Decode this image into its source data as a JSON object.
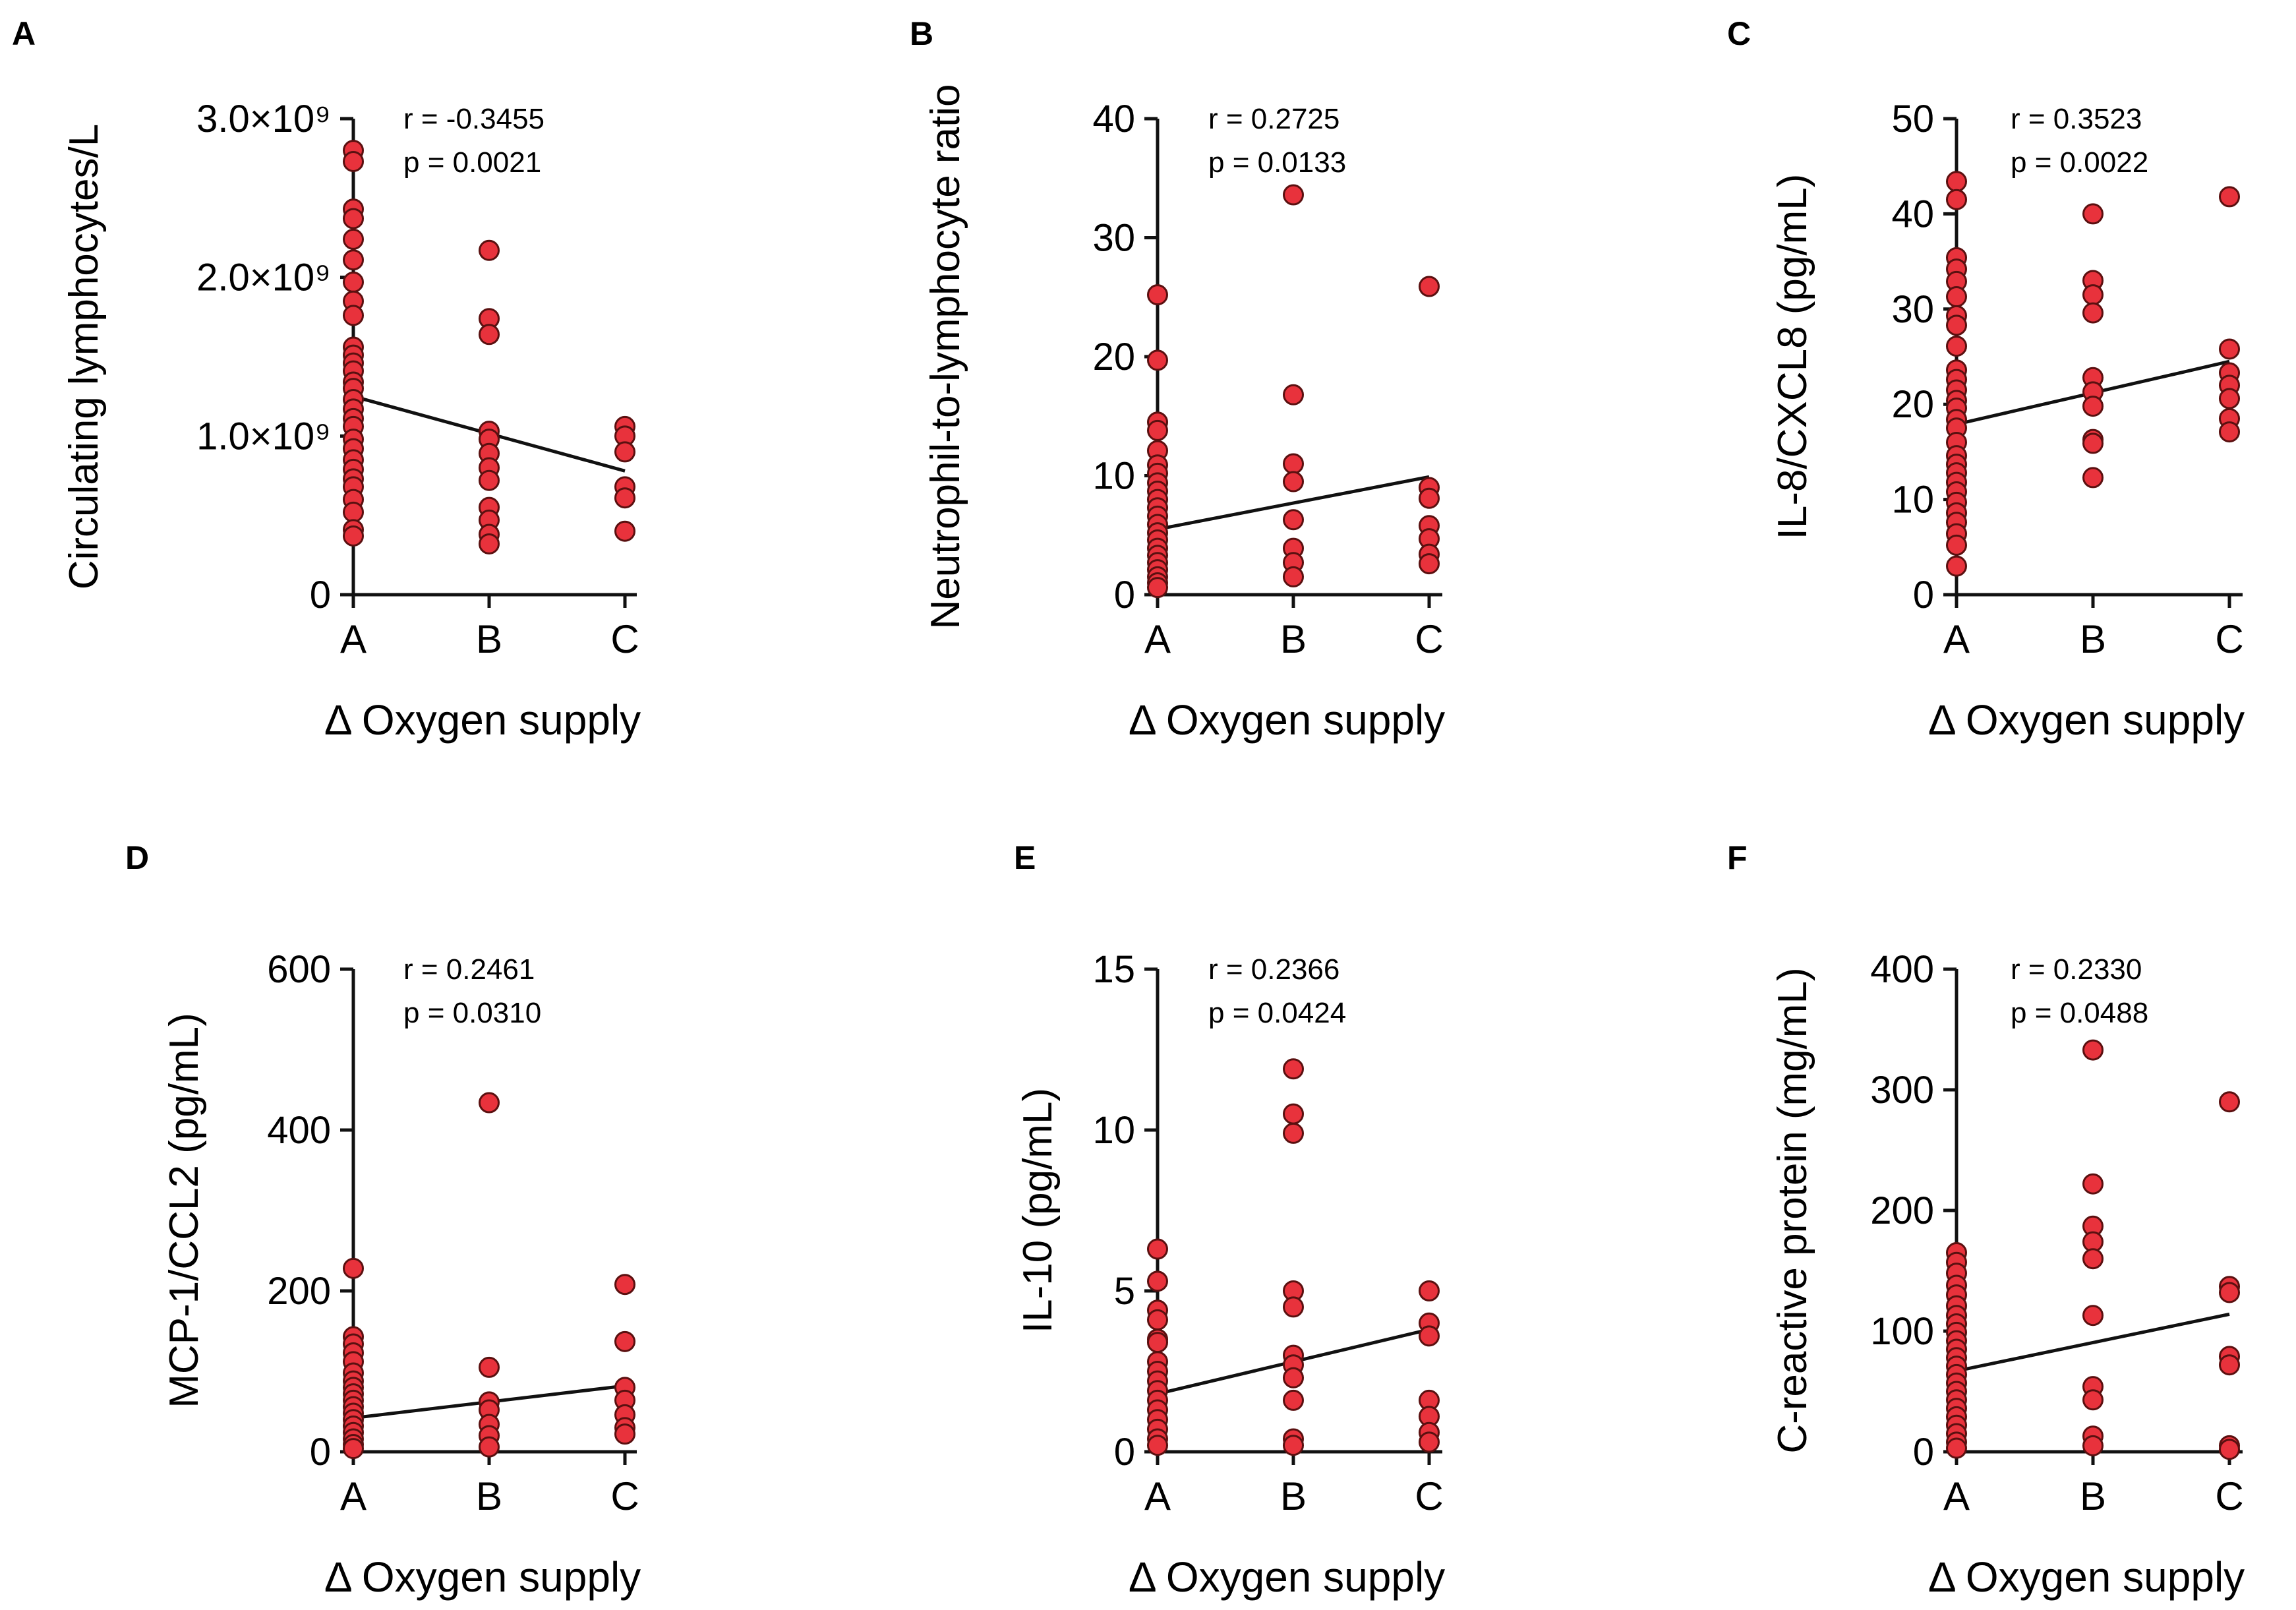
{
  "chart_data": [
    {
      "panel": "A",
      "type": "scatter",
      "ylabel": "Circulating lymphocytes/L",
      "xlabel": "Δ Oxygen supply",
      "categories": [
        "A",
        "B",
        "C"
      ],
      "ylim": [
        0,
        3000000000
      ],
      "yticks": [
        0,
        1000000000,
        2000000000,
        3000000000
      ],
      "ytick_labels": [
        "0",
        "1.0×10⁹",
        "2.0×10⁹",
        "3.0×10⁹"
      ],
      "stats": {
        "r": "r = -0.3455",
        "p": "p = 0.0021"
      },
      "trend": [
        1250000000,
        1020000000,
        780000000
      ],
      "points": {
        "A": [
          2800000000,
          2730000000,
          2430000000,
          2370000000,
          2240000000,
          2110000000,
          1970000000,
          1850000000,
          1760000000,
          1560000000,
          1510000000,
          1460000000,
          1410000000,
          1340000000,
          1300000000,
          1230000000,
          1170000000,
          1110000000,
          1060000000,
          980000000,
          920000000,
          850000000,
          790000000,
          730000000,
          680000000,
          600000000,
          520000000,
          410000000,
          370000000
        ],
        "B": [
          2170000000,
          1740000000,
          1640000000,
          1030000000,
          980000000,
          890000000,
          800000000,
          720000000,
          550000000,
          470000000,
          380000000,
          320000000
        ],
        "C": [
          1060000000,
          1000000000,
          900000000,
          680000000,
          610000000,
          400000000
        ]
      }
    },
    {
      "panel": "B",
      "type": "scatter",
      "ylabel": "Neutrophil-to-lymphocyte ratio",
      "xlabel": "Δ Oxygen supply",
      "categories": [
        "A",
        "B",
        "C"
      ],
      "ylim": [
        0,
        40
      ],
      "yticks": [
        0,
        10,
        20,
        30,
        40
      ],
      "ytick_labels": [
        "0",
        "10",
        "20",
        "30",
        "40"
      ],
      "stats": {
        "r": "r = 0.2725",
        "p": "p = 0.0133"
      },
      "trend": [
        5.5,
        7.7,
        9.9
      ],
      "points": {
        "A": [
          25.2,
          19.7,
          14.5,
          13.8,
          12.1,
          10.9,
          10.2,
          9.4,
          8.7,
          8.0,
          7.3,
          6.6,
          5.9,
          5.2,
          4.6,
          3.9,
          3.3,
          2.7,
          2.1,
          1.5,
          1.0,
          0.6
        ],
        "B": [
          33.6,
          16.8,
          11.0,
          9.5,
          6.3,
          3.9,
          2.7,
          1.5
        ],
        "C": [
          25.9,
          9.0,
          8.1,
          5.8,
          4.7,
          3.4,
          2.6
        ]
      }
    },
    {
      "panel": "C",
      "type": "scatter",
      "ylabel": "IL-8/CXCL8 (pg/mL)",
      "xlabel": "Δ Oxygen supply",
      "categories": [
        "A",
        "B",
        "C"
      ],
      "ylim": [
        0,
        50
      ],
      "yticks": [
        0,
        10,
        20,
        30,
        40,
        50
      ],
      "ytick_labels": [
        "0",
        "10",
        "20",
        "30",
        "40",
        "50"
      ],
      "stats": {
        "r": "r = 0.3523",
        "p": "p = 0.0022"
      },
      "trend": [
        17.9,
        21.2,
        24.5
      ],
      "points": {
        "A": [
          43.4,
          41.5,
          35.4,
          34.2,
          32.9,
          31.3,
          29.3,
          28.3,
          26.1,
          23.6,
          22.6,
          21.5,
          20.4,
          19.6,
          18.4,
          17.5,
          16.0,
          14.6,
          13.7,
          12.8,
          11.8,
          10.8,
          9.7,
          8.6,
          7.6,
          6.4,
          5.2,
          3.0
        ],
        "B": [
          40.0,
          33.0,
          31.5,
          29.6,
          22.8,
          21.3,
          19.8,
          16.3,
          15.9,
          12.3
        ],
        "C": [
          41.8,
          25.8,
          23.3,
          22.0,
          20.6,
          18.5,
          17.1
        ]
      }
    },
    {
      "panel": "D",
      "type": "scatter",
      "ylabel": "MCP-1/CCL2 (pg/mL)",
      "xlabel": "Δ Oxygen supply",
      "categories": [
        "A",
        "B",
        "C"
      ],
      "ylim": [
        0,
        600
      ],
      "yticks": [
        0,
        200,
        400,
        600
      ],
      "ytick_labels": [
        "0",
        "200",
        "400",
        "600"
      ],
      "stats": {
        "r": "r = 0.2461",
        "p": "p = 0.0310"
      },
      "trend": [
        42,
        62,
        82
      ],
      "points": {
        "A": [
          228,
          143,
          134,
          123,
          112,
          98,
          88,
          80,
          72,
          64,
          56,
          48,
          40,
          32,
          24,
          16,
          9,
          4
        ],
        "B": [
          434,
          105,
          62,
          52,
          34,
          20,
          6
        ],
        "C": [
          208,
          137,
          80,
          64,
          46,
          30,
          22
        ]
      }
    },
    {
      "panel": "E",
      "type": "scatter",
      "ylabel": "IL-10 (pg/mL)",
      "xlabel": "Δ Oxygen supply",
      "categories": [
        "A",
        "B",
        "C"
      ],
      "ylim": [
        0,
        15
      ],
      "yticks": [
        0,
        5,
        10,
        15
      ],
      "ytick_labels": [
        "0",
        "5",
        "10",
        "15"
      ],
      "stats": {
        "r": "r = 0.2366",
        "p": "p = 0.0424"
      },
      "trend": [
        1.8,
        2.8,
        3.8
      ],
      "points": {
        "A": [
          6.3,
          5.3,
          4.4,
          4.1,
          3.5,
          3.4,
          2.8,
          2.5,
          2.2,
          1.9,
          1.6,
          1.3,
          1.0,
          0.7,
          0.4,
          0.2
        ],
        "B": [
          11.9,
          10.5,
          9.9,
          5.0,
          4.5,
          3.0,
          2.7,
          2.3,
          1.6,
          0.4,
          0.2
        ],
        "C": [
          5.0,
          4.0,
          3.6,
          1.6,
          1.1,
          0.6,
          0.3
        ]
      }
    },
    {
      "panel": "F",
      "type": "scatter",
      "ylabel": "C-reactive protein (mg/mL)",
      "xlabel": "Δ Oxygen supply",
      "categories": [
        "A",
        "B",
        "C"
      ],
      "ylim": [
        0,
        400
      ],
      "yticks": [
        0,
        100,
        200,
        300,
        400
      ],
      "ytick_labels": [
        "0",
        "100",
        "200",
        "300",
        "400"
      ],
      "stats": {
        "r": "r = 0.2330",
        "p": "p = 0.0488"
      },
      "trend": [
        67,
        90,
        114
      ],
      "points": {
        "A": [
          165,
          157,
          148,
          138,
          130,
          121,
          113,
          106,
          99,
          92,
          85,
          78,
          71,
          64,
          57,
          50,
          43,
          36,
          29,
          22,
          15,
          8,
          3
        ],
        "B": [
          333,
          222,
          187,
          174,
          160,
          113,
          54,
          43,
          13,
          5
        ],
        "C": [
          290,
          137,
          132,
          79,
          72,
          5,
          2
        ]
      }
    }
  ],
  "colors": {
    "point_fill": "#e8323c",
    "point_stroke": "#5a1010",
    "axis": "#111111",
    "trend": "#111111"
  }
}
